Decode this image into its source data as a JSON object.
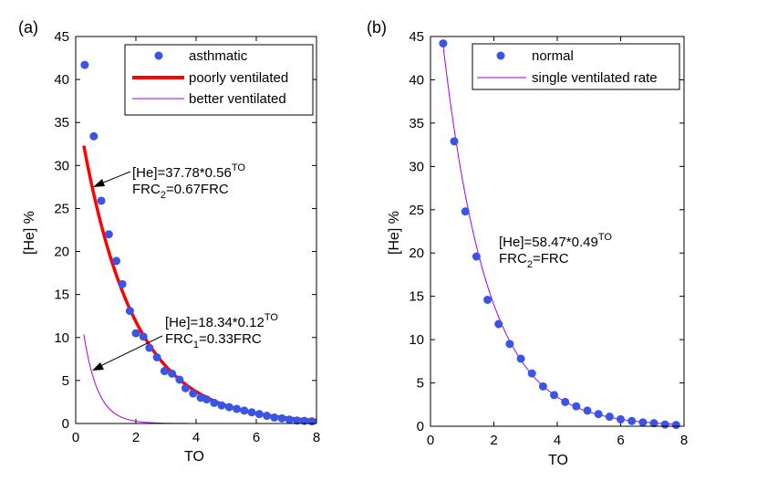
{
  "chart_data": [
    {
      "type": "scatter",
      "panel_label": "(a)",
      "xlabel": "TO",
      "ylabel": "[He] %",
      "xlim": [
        0,
        8
      ],
      "ylim": [
        0,
        45
      ],
      "xticks": [
        "0",
        "2",
        "4",
        "6",
        "8"
      ],
      "yticks": [
        "0",
        "5",
        "10",
        "15",
        "20",
        "25",
        "30",
        "35",
        "40",
        "45"
      ],
      "legend": [
        "asthmatic",
        "poorly ventilated",
        "better ventilated"
      ],
      "legend_position": "top-right",
      "points": {
        "name": "asthmatic",
        "x": [
          0.3,
          0.6,
          0.85,
          1.1,
          1.35,
          1.55,
          1.8,
          2.0,
          2.25,
          2.45,
          2.7,
          2.95,
          3.2,
          3.45,
          3.65,
          3.9,
          4.15,
          4.35,
          4.6,
          4.85,
          5.1,
          5.35,
          5.6,
          5.85,
          6.1,
          6.35,
          6.6,
          6.85,
          7.1,
          7.35,
          7.6,
          7.85
        ],
        "y": [
          41.7,
          33.4,
          25.9,
          22.0,
          18.9,
          16.2,
          13.1,
          10.5,
          10.1,
          8.8,
          7.7,
          6.1,
          5.8,
          5.1,
          4.1,
          3.5,
          3.0,
          2.8,
          2.4,
          2.1,
          1.9,
          1.7,
          1.5,
          1.3,
          1.1,
          0.9,
          0.7,
          0.6,
          0.45,
          0.35,
          0.3,
          0.25
        ]
      },
      "curves": [
        {
          "name": "poorly ventilated",
          "formula": "37.78*0.56^TO",
          "a": 37.78,
          "b": 0.56,
          "x_start": 0.27,
          "x_end": 8,
          "color": "#ff0000"
        },
        {
          "name": "better ventilated",
          "formula": "18.34*0.12^TO",
          "a": 18.34,
          "b": 0.12,
          "x_start": 0.27,
          "x_end": 8,
          "color": "#9900ff"
        }
      ],
      "annotations": [
        {
          "eq": "[He]=37.78*0.56",
          "eq_sup": "TO",
          "frc_prefix": "FRC",
          "frc_sub": "2",
          "frc_suffix": "=0.67FRC",
          "arrow_target": [
            0.55,
            27.5
          ]
        },
        {
          "eq": "[He]=18.34*0.12",
          "eq_sup": "TO",
          "frc_prefix": "FRC",
          "frc_sub": "1",
          "frc_suffix": "=0.33FRC",
          "arrow_target": [
            0.55,
            6.0
          ]
        }
      ]
    },
    {
      "type": "scatter",
      "panel_label": "(b)",
      "xlabel": "TO",
      "ylabel": "[He] %",
      "xlim": [
        0,
        8
      ],
      "ylim": [
        0,
        45
      ],
      "xticks": [
        "0",
        "2",
        "4",
        "6",
        "8"
      ],
      "yticks": [
        "0",
        "5",
        "10",
        "15",
        "20",
        "25",
        "30",
        "35",
        "40",
        "45"
      ],
      "legend": [
        "normal",
        "single ventilated rate"
      ],
      "legend_position": "top-right",
      "points": {
        "name": "normal",
        "x": [
          0.4,
          0.75,
          1.1,
          1.45,
          1.8,
          2.15,
          2.5,
          2.85,
          3.2,
          3.55,
          3.9,
          4.25,
          4.6,
          4.95,
          5.3,
          5.65,
          6.0,
          6.35,
          6.7,
          7.05,
          7.4,
          7.75
        ],
        "y": [
          44.2,
          32.9,
          24.8,
          19.6,
          14.6,
          11.8,
          9.5,
          7.8,
          6.1,
          4.6,
          3.6,
          2.8,
          2.3,
          1.8,
          1.4,
          1.1,
          0.8,
          0.6,
          0.45,
          0.35,
          0.2,
          0.15
        ]
      },
      "curves": [
        {
          "name": "single ventilated rate",
          "formula": "58.47*0.49^TO",
          "a": 58.47,
          "b": 0.49,
          "x_start": 0.38,
          "x_end": 7.8,
          "color": "#9900ff"
        }
      ],
      "annotations": [
        {
          "eq": "[He]=58.47*0.49",
          "eq_sup": "TO",
          "frc_prefix": "FRC",
          "frc_sub": "2",
          "frc_suffix": "=FRC"
        }
      ]
    }
  ],
  "colors": {
    "points": "#3a55e6",
    "poorly": "#ff0000",
    "better": "#9900ff",
    "single": "#9900ff"
  }
}
